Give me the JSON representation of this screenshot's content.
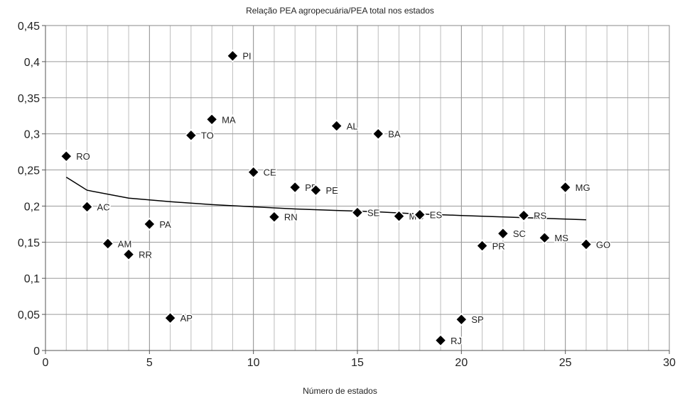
{
  "chart_data": {
    "type": "scatter",
    "title": "Relação PEA agropecuária/PEA total nos estados",
    "xlabel": "Número de estados",
    "ylabel": "",
    "xlim": [
      0,
      30
    ],
    "ylim": [
      0,
      0.45
    ],
    "x_ticks": [
      0,
      5,
      10,
      15,
      20,
      25,
      30
    ],
    "x_tick_labels": [
      "0",
      "5",
      "10",
      "15",
      "20",
      "25",
      "30"
    ],
    "y_ticks": [
      0,
      0.05,
      0.1,
      0.15,
      0.2,
      0.25,
      0.3,
      0.35,
      0.4,
      0.45
    ],
    "y_tick_labels": [
      "0",
      "0,05",
      "0,1",
      "0,15",
      "0,2",
      "0,25",
      "0,3",
      "0,35",
      "0,4",
      "0,45"
    ],
    "grid": true,
    "legend": "none",
    "marker_color": "#000000",
    "series": [
      {
        "points": [
          {
            "label": "RO",
            "x": 1,
            "y": 0.269
          },
          {
            "label": "AC",
            "x": 2,
            "y": 0.199
          },
          {
            "label": "AM",
            "x": 3,
            "y": 0.148
          },
          {
            "label": "RR",
            "x": 4,
            "y": 0.133
          },
          {
            "label": "PA",
            "x": 5,
            "y": 0.175
          },
          {
            "label": "AP",
            "x": 6,
            "y": 0.045
          },
          {
            "label": "TO",
            "x": 7,
            "y": 0.298
          },
          {
            "label": "MA",
            "x": 8,
            "y": 0.32
          },
          {
            "label": "PI",
            "x": 9,
            "y": 0.408
          },
          {
            "label": "CE",
            "x": 10,
            "y": 0.247
          },
          {
            "label": "RN",
            "x": 11,
            "y": 0.185
          },
          {
            "label": "PB",
            "x": 12,
            "y": 0.226
          },
          {
            "label": "PE",
            "x": 13,
            "y": 0.222
          },
          {
            "label": "AL",
            "x": 14,
            "y": 0.311
          },
          {
            "label": "SE",
            "x": 15,
            "y": 0.191
          },
          {
            "label": "BA",
            "x": 16,
            "y": 0.3
          },
          {
            "label": "MG",
            "x": 17,
            "y": 0.186
          },
          {
            "label": "ES",
            "x": 18,
            "y": 0.188
          },
          {
            "label": "RJ",
            "x": 19,
            "y": 0.014
          },
          {
            "label": "SP",
            "x": 20,
            "y": 0.043
          },
          {
            "label": "PR",
            "x": 21,
            "y": 0.145
          },
          {
            "label": "SC",
            "x": 22,
            "y": 0.162
          },
          {
            "label": "RS",
            "x": 23,
            "y": 0.187
          },
          {
            "label": "MS",
            "x": 24,
            "y": 0.156
          },
          {
            "label": "MG",
            "x": 25,
            "y": 0.226
          },
          {
            "label": "GO",
            "x": 26,
            "y": 0.147
          }
        ]
      }
    ],
    "trendline": {
      "type": "logarithmic",
      "x": [
        1,
        2,
        4,
        6,
        8,
        10,
        12,
        14,
        16,
        18,
        20,
        22,
        24,
        26
      ],
      "y": [
        0.24,
        0.222,
        0.211,
        0.206,
        0.202,
        0.199,
        0.196,
        0.194,
        0.192,
        0.189,
        0.187,
        0.185,
        0.183,
        0.181
      ]
    }
  }
}
